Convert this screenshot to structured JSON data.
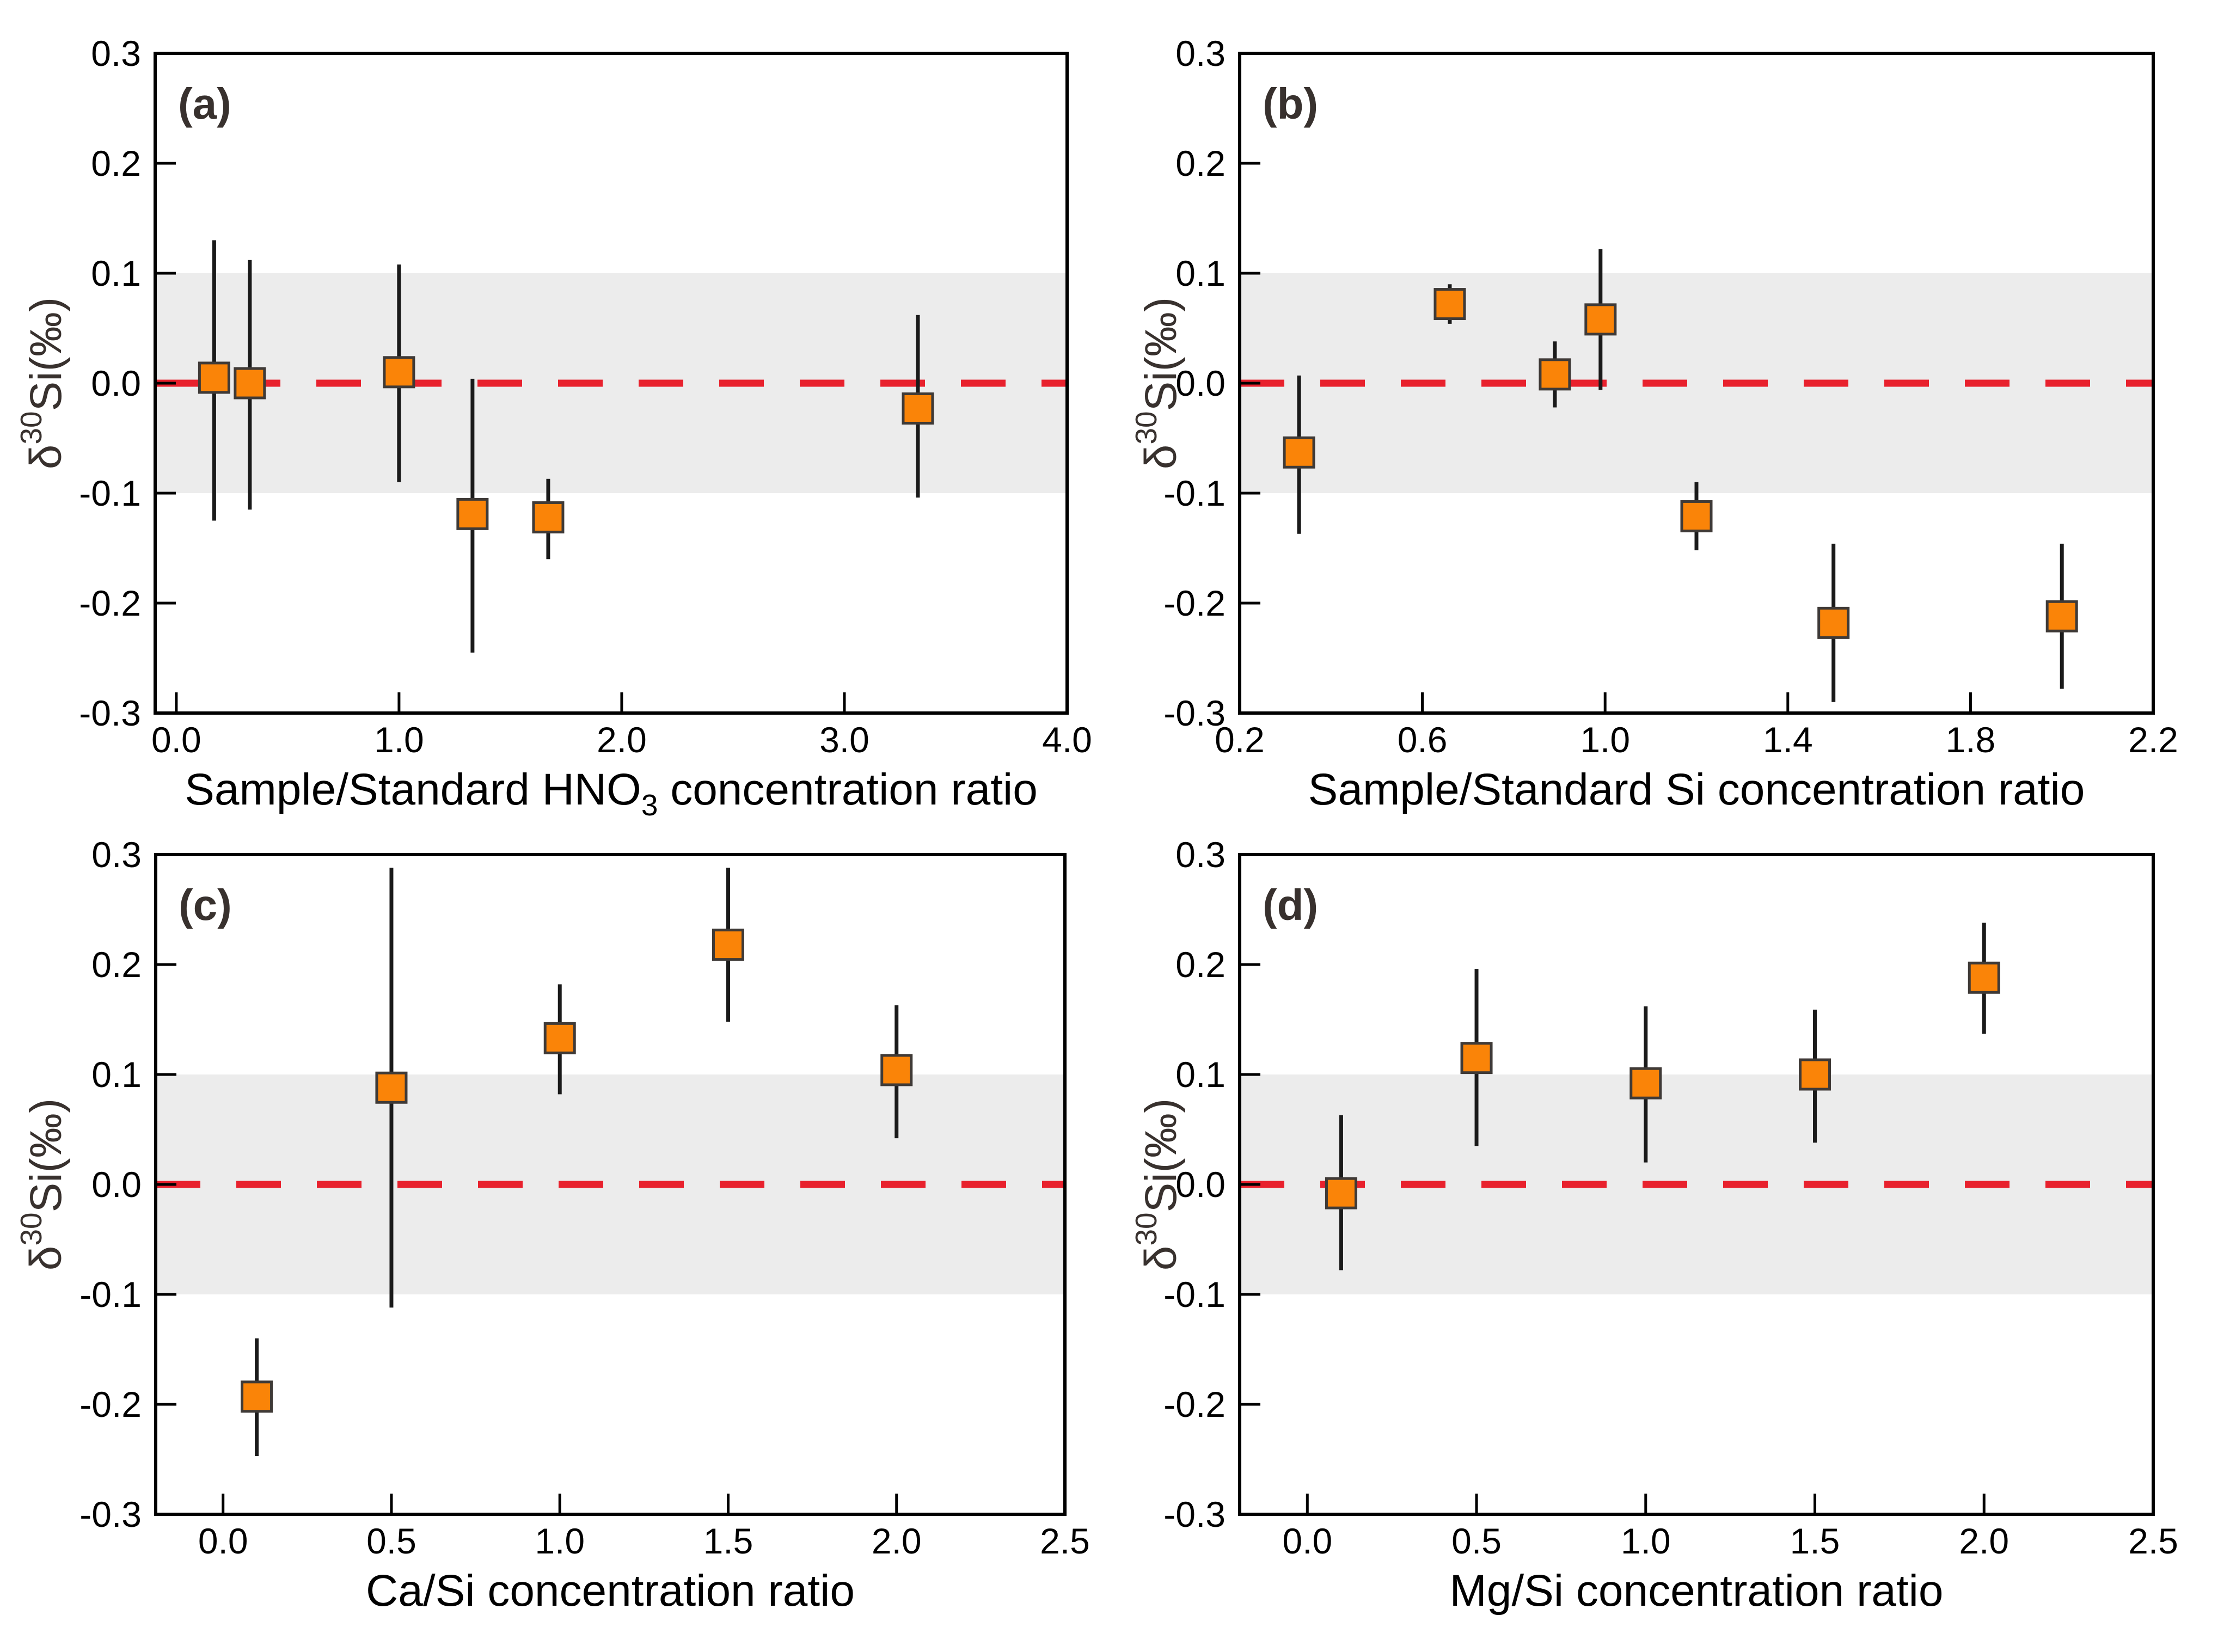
{
  "colors": {
    "background": "#FFFFFF",
    "plot_background": "#FFFFFF",
    "frame": "#000000",
    "band": "#ECECEC",
    "zero_line": "#E8212D",
    "error_bar": "#1A1A1A",
    "marker_fill": "#FA8408",
    "marker_stroke": "#3F3A37",
    "tick_label": "#000000",
    "axis_title": "#000000",
    "panel_label": "#38312E",
    "y_title": "#38312E"
  },
  "y_axis": {
    "lim": [
      -0.3,
      0.3
    ],
    "band": [
      -0.1,
      0.1
    ],
    "zero": 0.0,
    "ticks": [
      {
        "value": 0.3,
        "label": "0.3"
      },
      {
        "value": 0.2,
        "label": "0.2"
      },
      {
        "value": 0.1,
        "label": "0.1"
      },
      {
        "value": 0.0,
        "label": "0.0"
      },
      {
        "value": -0.1,
        "label": "-0.1"
      },
      {
        "value": -0.2,
        "label": "-0.2"
      },
      {
        "value": -0.3,
        "label": "-0.3"
      }
    ],
    "label_parts": [
      {
        "text": "δ",
        "script": "normal"
      },
      {
        "text": "30",
        "script": "sup"
      },
      {
        "text": "Si(‰)",
        "script": "normal"
      }
    ]
  },
  "chart_data": [
    {
      "id": "a",
      "type": "scatter",
      "panel_label": "(a)",
      "xlabel_parts": [
        {
          "text": "Sample/Standard HNO",
          "script": "normal"
        },
        {
          "text": "3",
          "script": "sub"
        },
        {
          "text": " concentration ratio",
          "script": "normal"
        }
      ],
      "xlim": [
        -0.095,
        4.0
      ],
      "xticks": [
        {
          "value": 0.0,
          "label": "0.0"
        },
        {
          "value": 1.0,
          "label": "1.0"
        },
        {
          "value": 2.0,
          "label": "2.0"
        },
        {
          "value": 3.0,
          "label": "3.0"
        },
        {
          "value": 4.0,
          "label": "4.0"
        }
      ],
      "points": [
        {
          "x": 0.17,
          "y": 0.005,
          "y_min": -0.125,
          "y_max": 0.13
        },
        {
          "x": 0.33,
          "y": 0.0,
          "y_min": -0.115,
          "y_max": 0.112
        },
        {
          "x": 1.0,
          "y": 0.01,
          "y_min": -0.09,
          "y_max": 0.108
        },
        {
          "x": 1.33,
          "y": -0.119,
          "y_min": -0.245,
          "y_max": 0.004
        },
        {
          "x": 1.67,
          "y": -0.122,
          "y_min": -0.16,
          "y_max": -0.087
        },
        {
          "x": 3.33,
          "y": -0.023,
          "y_min": -0.104,
          "y_max": 0.062
        }
      ]
    },
    {
      "id": "b",
      "type": "scatter",
      "panel_label": "(b)",
      "xlabel_parts": [
        {
          "text": "Sample/Standard Si concentration ratio",
          "script": "normal"
        }
      ],
      "xlim": [
        0.2,
        2.2
      ],
      "xticks": [
        {
          "value": 0.2,
          "label": "0.2"
        },
        {
          "value": 0.6,
          "label": "0.6"
        },
        {
          "value": 1.0,
          "label": "1.0"
        },
        {
          "value": 1.4,
          "label": "1.4"
        },
        {
          "value": 1.8,
          "label": "1.8"
        },
        {
          "value": 2.2,
          "label": "2.2"
        }
      ],
      "points": [
        {
          "x": 0.33,
          "y": -0.063,
          "y_min": -0.137,
          "y_max": 0.007
        },
        {
          "x": 0.66,
          "y": 0.072,
          "y_min": 0.054,
          "y_max": 0.09
        },
        {
          "x": 0.89,
          "y": 0.008,
          "y_min": -0.022,
          "y_max": 0.038
        },
        {
          "x": 0.99,
          "y": 0.058,
          "y_min": -0.006,
          "y_max": 0.122
        },
        {
          "x": 1.2,
          "y": -0.121,
          "y_min": -0.152,
          "y_max": -0.09
        },
        {
          "x": 1.5,
          "y": -0.218,
          "y_min": -0.29,
          "y_max": -0.146
        },
        {
          "x": 2.0,
          "y": -0.212,
          "y_min": -0.278,
          "y_max": -0.146
        }
      ]
    },
    {
      "id": "c",
      "type": "scatter",
      "panel_label": "(c)",
      "xlabel_parts": [
        {
          "text": "Ca/Si concentration ratio",
          "script": "normal"
        }
      ],
      "xlim": [
        -0.2,
        2.5
      ],
      "xticks": [
        {
          "value": 0.0,
          "label": "0.0"
        },
        {
          "value": 0.5,
          "label": "0.5"
        },
        {
          "value": 1.0,
          "label": "1.0"
        },
        {
          "value": 1.5,
          "label": "1.5"
        },
        {
          "value": 2.0,
          "label": "2.0"
        },
        {
          "value": 2.5,
          "label": "2.5"
        }
      ],
      "points": [
        {
          "x": 0.1,
          "y": -0.193,
          "y_min": -0.247,
          "y_max": -0.14
        },
        {
          "x": 0.5,
          "y": 0.088,
          "y_min": -0.112,
          "y_max": 0.288
        },
        {
          "x": 1.0,
          "y": 0.133,
          "y_min": 0.082,
          "y_max": 0.182
        },
        {
          "x": 1.5,
          "y": 0.218,
          "y_min": 0.148,
          "y_max": 0.288
        },
        {
          "x": 2.0,
          "y": 0.104,
          "y_min": 0.042,
          "y_max": 0.163
        }
      ]
    },
    {
      "id": "d",
      "type": "scatter",
      "panel_label": "(d)",
      "xlabel_parts": [
        {
          "text": "Mg/Si concentration ratio",
          "script": "normal"
        }
      ],
      "xlim": [
        -0.2,
        2.5
      ],
      "xticks": [
        {
          "value": 0.0,
          "label": "0.0"
        },
        {
          "value": 0.5,
          "label": "0.5"
        },
        {
          "value": 1.0,
          "label": "1.0"
        },
        {
          "value": 1.5,
          "label": "1.5"
        },
        {
          "value": 2.0,
          "label": "2.0"
        },
        {
          "value": 2.5,
          "label": "2.5"
        }
      ],
      "points": [
        {
          "x": 0.1,
          "y": -0.008,
          "y_min": -0.078,
          "y_max": 0.063
        },
        {
          "x": 0.5,
          "y": 0.115,
          "y_min": 0.035,
          "y_max": 0.196
        },
        {
          "x": 1.0,
          "y": 0.092,
          "y_min": 0.02,
          "y_max": 0.162
        },
        {
          "x": 1.5,
          "y": 0.1,
          "y_min": 0.038,
          "y_max": 0.159
        },
        {
          "x": 2.0,
          "y": 0.188,
          "y_min": 0.137,
          "y_max": 0.238
        }
      ]
    }
  ]
}
